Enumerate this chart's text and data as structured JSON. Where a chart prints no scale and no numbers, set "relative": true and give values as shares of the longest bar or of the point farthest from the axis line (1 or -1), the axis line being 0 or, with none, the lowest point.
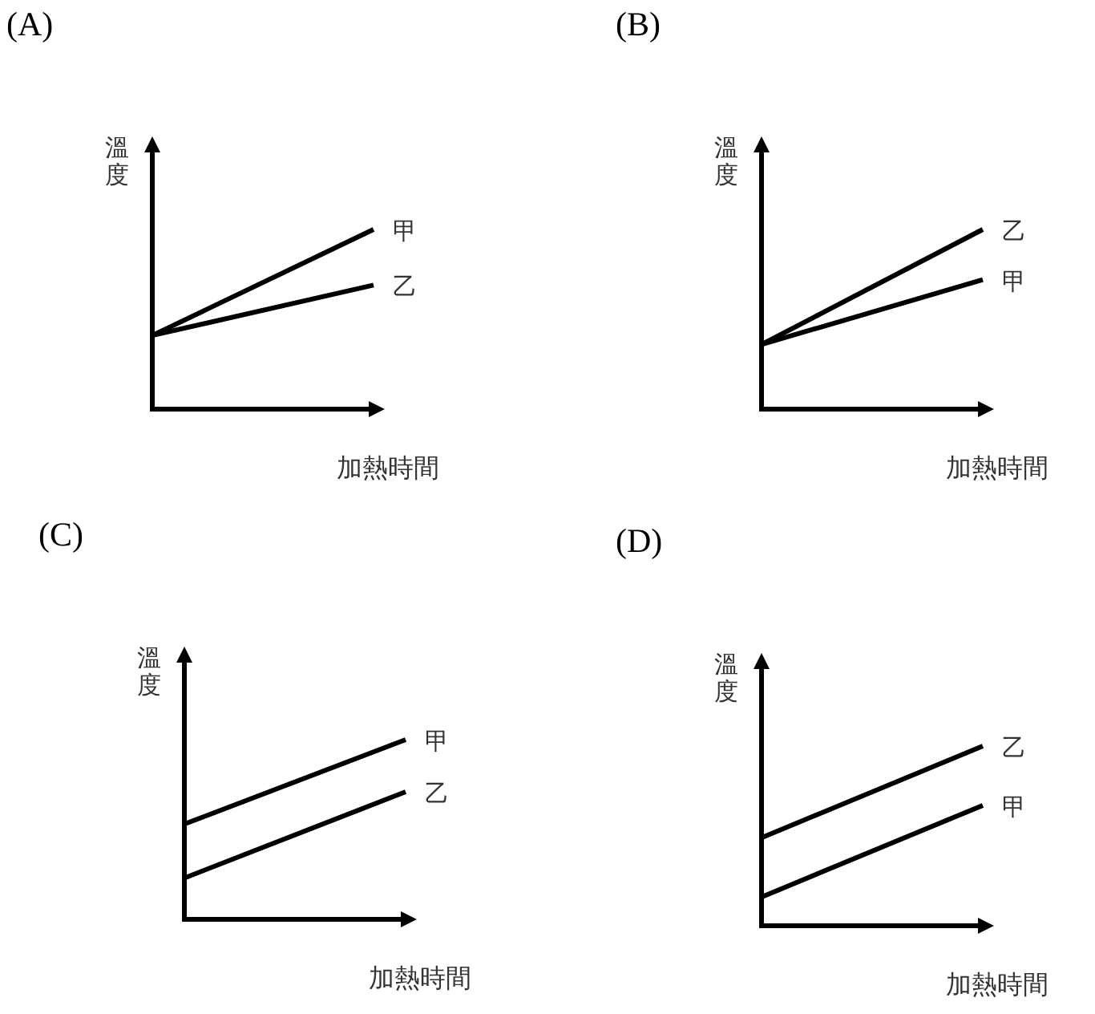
{
  "chart_data": [
    {
      "type": "line",
      "title": "(A)",
      "ylabel": "溫度",
      "xlabel": "加熱時間",
      "relative": true,
      "categories": [
        null,
        null
      ],
      "series": [
        {
          "name": "甲",
          "color": "#000000",
          "values": [
            0.41,
            1
          ]
        },
        {
          "name": "乙",
          "color": "#000000",
          "values": [
            0.41,
            0.69
          ]
        }
      ]
    },
    {
      "type": "line",
      "title": "(B)",
      "ylabel": "溫度",
      "xlabel": "加熱時間",
      "relative": true,
      "categories": [
        null,
        null
      ],
      "series": [
        {
          "name": "乙",
          "color": "#000000",
          "values": [
            0.36,
            1
          ]
        },
        {
          "name": "甲",
          "color": "#000000",
          "values": [
            0.36,
            0.72
          ]
        }
      ]
    },
    {
      "type": "line",
      "title": "(C)",
      "ylabel": "溫度",
      "xlabel": "加熱時間",
      "relative": true,
      "categories": [
        null,
        null
      ],
      "series": [
        {
          "name": "甲",
          "color": "#000000",
          "values": [
            0.53,
            1
          ]
        },
        {
          "name": "乙",
          "color": "#000000",
          "values": [
            0.23,
            0.71
          ]
        }
      ]
    },
    {
      "type": "line",
      "title": "(D)",
      "ylabel": "溫度",
      "xlabel": "加熱時間",
      "relative": true,
      "categories": [
        null,
        null
      ],
      "series": [
        {
          "name": "乙",
          "color": "#000000",
          "values": [
            0.49,
            1
          ]
        },
        {
          "name": "甲",
          "color": "#000000",
          "values": [
            0.16,
            0.67
          ]
        }
      ]
    }
  ]
}
